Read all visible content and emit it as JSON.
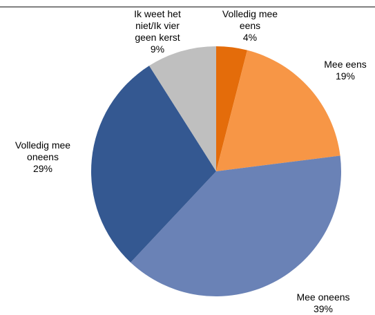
{
  "chart_data": {
    "type": "pie",
    "categories": [
      "Volledig mee eens",
      "Mee eens",
      "Mee oneens",
      "Volledig mee oneens",
      "Ik weet het niet/Ik vier geen kerst"
    ],
    "values": [
      4,
      19,
      39,
      29,
      9
    ],
    "value_labels": [
      "4%",
      "19%",
      "39%",
      "29%",
      "9%"
    ],
    "colors": [
      "#e46c0a",
      "#f79646",
      "#6a82b6",
      "#345891",
      "#bfbfbf"
    ]
  }
}
